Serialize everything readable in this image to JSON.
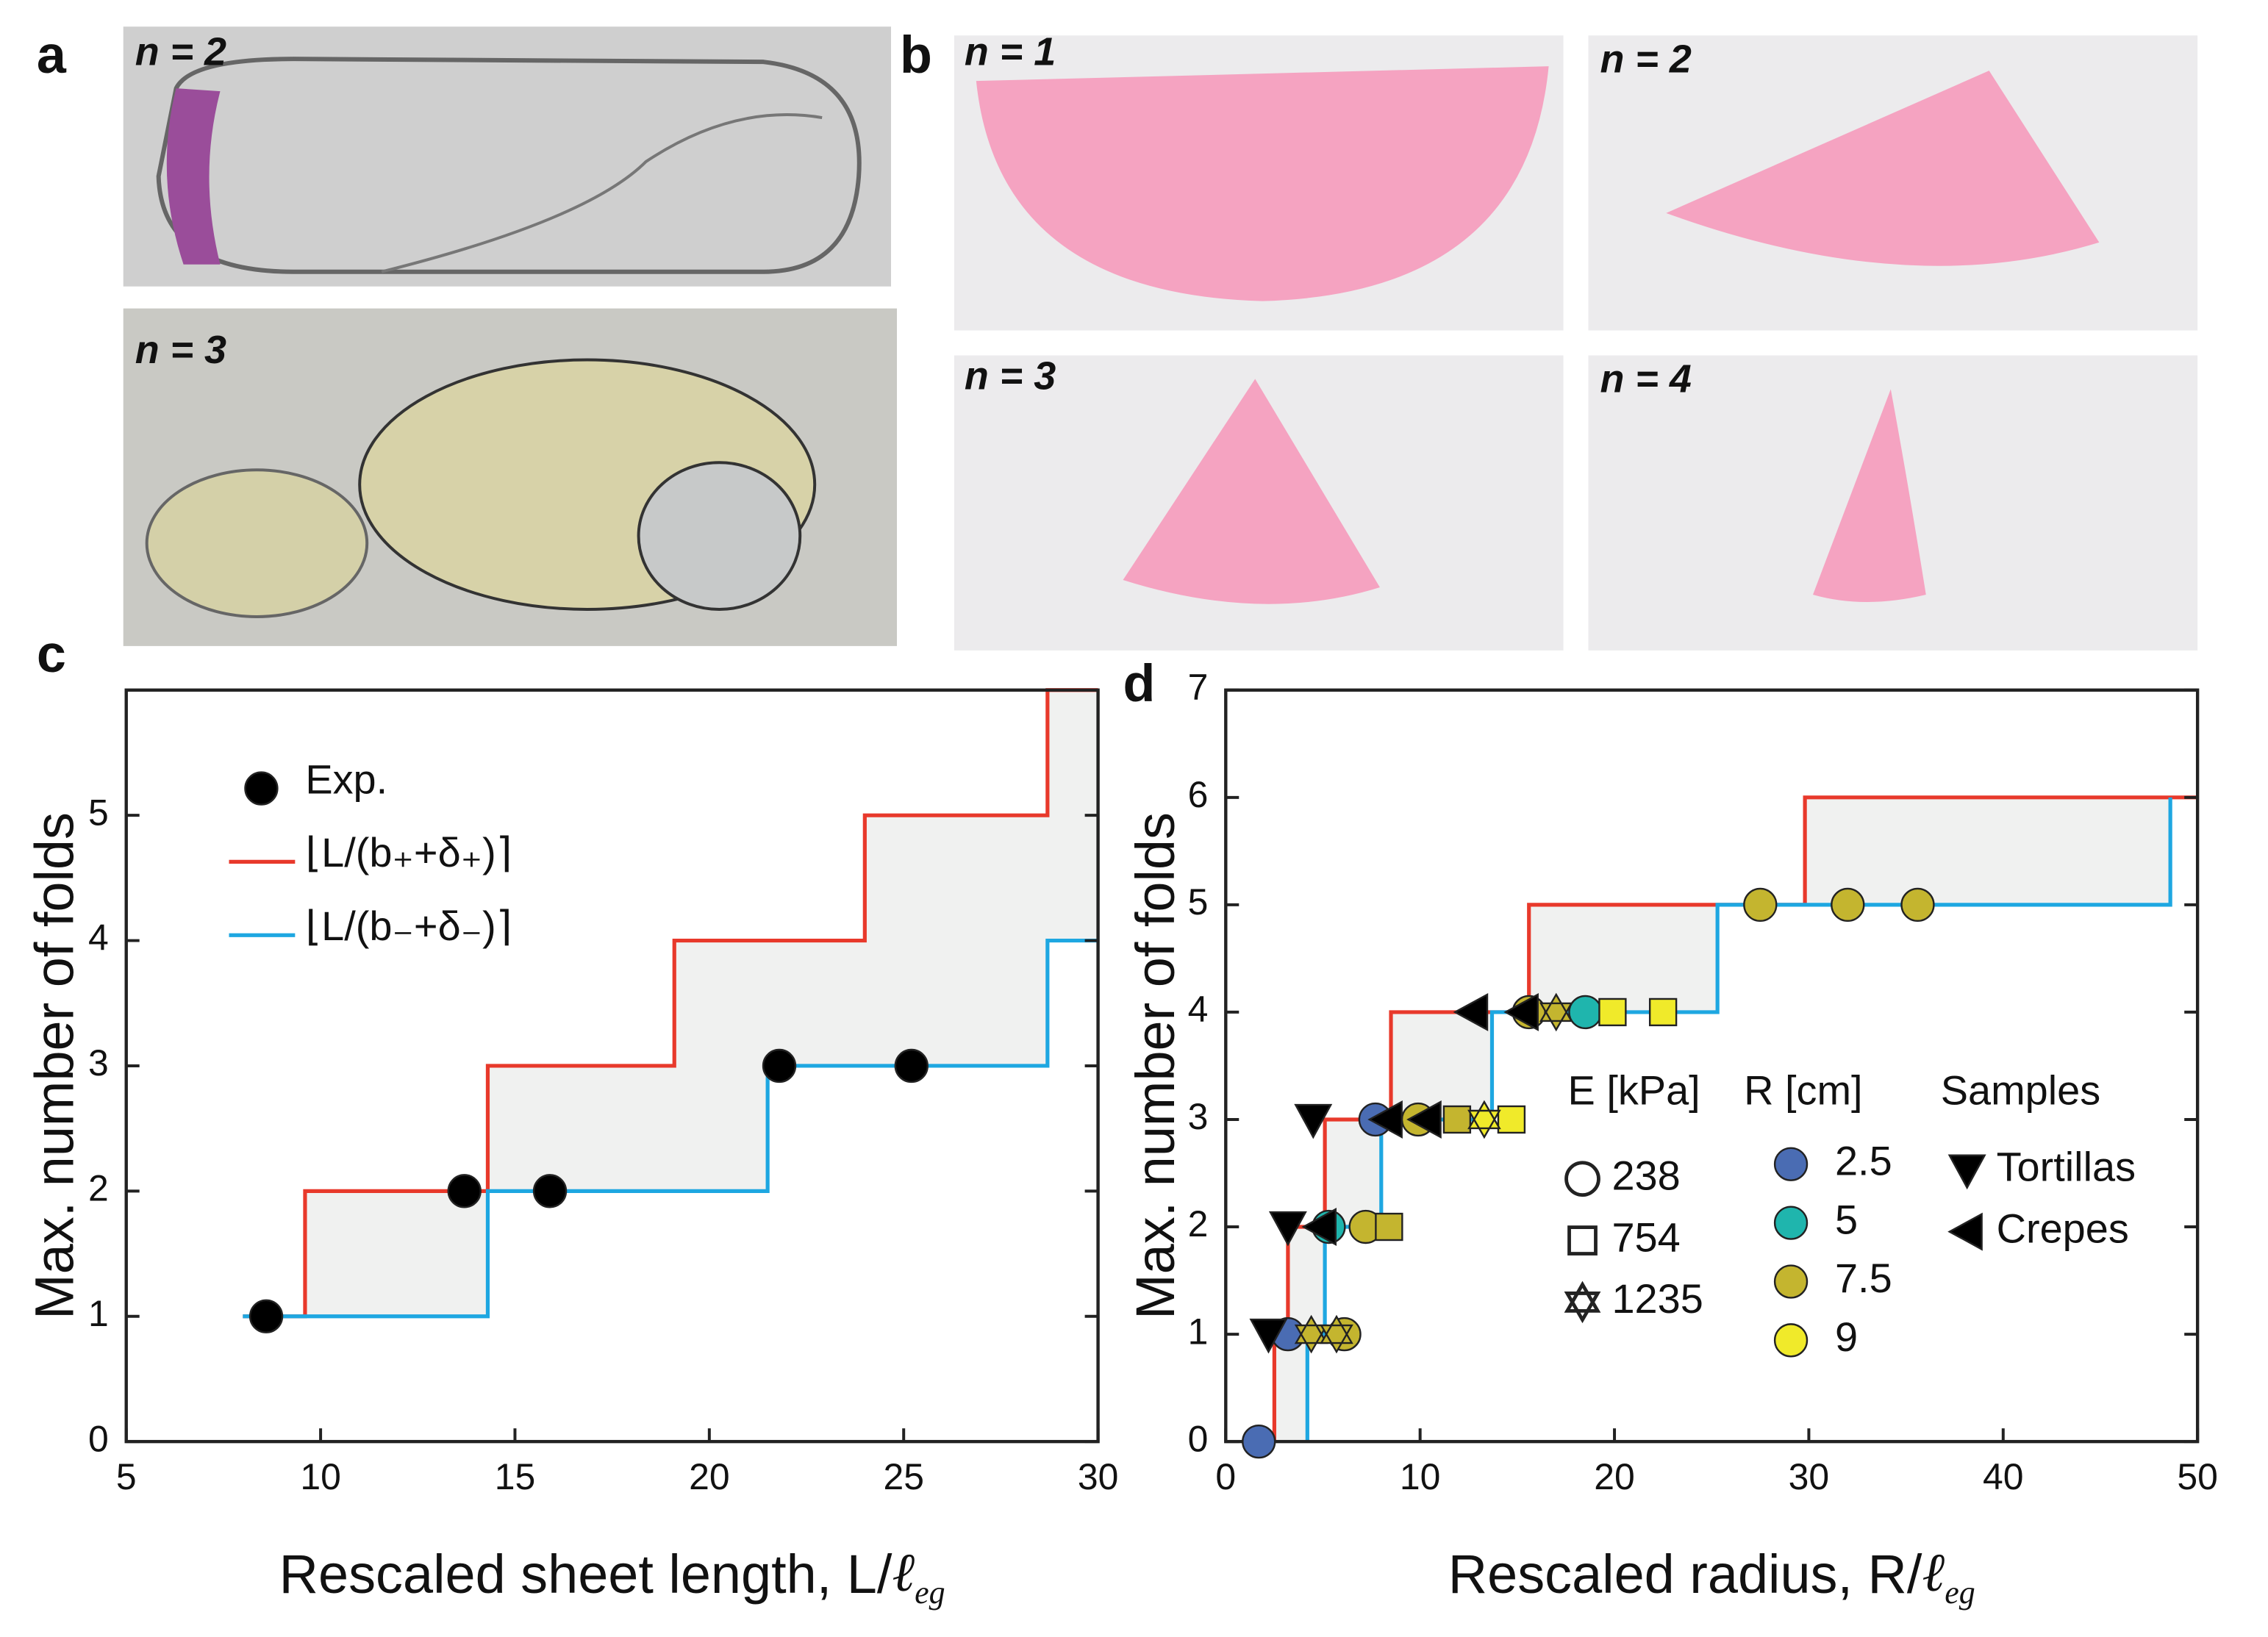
{
  "panel_labels": [
    "a",
    "b",
    "c",
    "d"
  ],
  "photos": {
    "a": [
      "n = 2",
      "n = 3"
    ],
    "b": [
      "n = 1",
      "n = 2",
      "n = 3",
      "n = 4"
    ]
  },
  "chart_data": [
    {
      "type": "step",
      "xlabel": "Rescaled sheet length, L/",
      "xlabel_symbol": "ℓ",
      "xlabel_sub": "eg",
      "ylabel": "Max. number of folds",
      "xlim": [
        5,
        30
      ],
      "xticks": [
        5,
        10,
        15,
        20,
        25,
        30
      ],
      "ylim": [
        0,
        6
      ],
      "yticks": [
        0,
        1,
        2,
        3,
        4,
        5
      ],
      "fill": "#f0f1f0",
      "series": [
        {
          "name": "Exp.",
          "marker": "circle",
          "color": "#000000",
          "x": [
            8.6,
            13.7,
            15.9,
            21.8,
            25.2
          ],
          "values": [
            1,
            2,
            2,
            3,
            3
          ]
        },
        {
          "name": "⌊L/(b₊+δ₊)⌉",
          "color": "#e8392b",
          "x": [
            8,
            9.6,
            9.6,
            14.3,
            14.3,
            19.1,
            19.1,
            24,
            24,
            28.7,
            28.7,
            30
          ],
          "values": [
            1,
            1,
            2,
            2,
            3,
            3,
            4,
            4,
            5,
            5,
            6,
            6
          ]
        },
        {
          "name": "⌊L/(b₋+δ₋)⌉",
          "color": "#1ea7e1",
          "x": [
            8,
            14.3,
            14.3,
            21.5,
            21.5,
            28.7,
            28.7,
            30
          ],
          "values": [
            1,
            1,
            2,
            2,
            3,
            3,
            4,
            4
          ]
        }
      ]
    },
    {
      "type": "step",
      "xlabel": "Rescaled radius, R/",
      "xlabel_symbol": "ℓ",
      "xlabel_sub": "eg",
      "ylabel": "Max. number of folds",
      "xlim": [
        0,
        50
      ],
      "xticks": [
        0,
        10,
        20,
        30,
        40,
        50
      ],
      "ylim": [
        0,
        7
      ],
      "yticks": [
        0,
        1,
        2,
        3,
        4,
        5,
        6,
        7
      ],
      "fill": "#f0f1f0",
      "series": [
        {
          "color": "#e8392b",
          "x": [
            2.5,
            2.5,
            3.2,
            3.2,
            5.1,
            5.1,
            8.5,
            8.5,
            15.6,
            15.6,
            29.8,
            29.8,
            50
          ],
          "values": [
            0,
            1,
            1,
            2,
            2,
            3,
            3,
            4,
            4,
            5,
            5,
            6,
            6
          ]
        },
        {
          "color": "#1ea7e1",
          "x": [
            4.2,
            4.2,
            5.1,
            5.1,
            8.0,
            8.0,
            13.7,
            13.7,
            25.3,
            25.3,
            48.6,
            48.6
          ],
          "values": [
            0,
            1,
            1,
            2,
            2,
            3,
            3,
            4,
            4,
            5,
            5,
            6
          ]
        },
        {
          "marker": "circle",
          "color": "#4a6cb3",
          "x": [
            1.7,
            3.2,
            7.7
          ],
          "values": [
            0,
            1,
            3
          ]
        },
        {
          "marker": "circle",
          "color": "#1fb5ad",
          "x": [
            5.3,
            18.5
          ],
          "values": [
            2,
            4
          ]
        },
        {
          "marker": "circle",
          "color": "#c4b52f",
          "x": [
            6.1,
            7.2,
            9.9,
            15.6,
            27.5,
            32,
            35.6
          ],
          "values": [
            1,
            2,
            3,
            4,
            5,
            5,
            5
          ]
        },
        {
          "marker": "square",
          "color": "#c4b52f",
          "x": [
            8.4,
            11.9
          ],
          "values": [
            2,
            3
          ]
        },
        {
          "marker": "square",
          "color": "#f0ea2a",
          "x": [
            14.7,
            19.9,
            22.5
          ],
          "values": [
            3,
            4,
            4
          ]
        },
        {
          "marker": "star",
          "color": "#c4b52f",
          "x": [
            4.4,
            5.7,
            17.0
          ],
          "values": [
            1,
            1,
            4
          ]
        },
        {
          "marker": "star",
          "color": "#f0ea2a",
          "x": [
            13.3
          ],
          "values": [
            3
          ]
        },
        {
          "marker": "triangle-down",
          "color": "#000000",
          "x": [
            2.2,
            3.2,
            4.5
          ],
          "values": [
            1,
            2,
            3
          ]
        },
        {
          "marker": "triangle-left",
          "color": "#000000",
          "x": [
            4.9,
            8.3,
            10.3,
            12.7,
            15.3
          ],
          "values": [
            2,
            3,
            3,
            4,
            4
          ]
        }
      ],
      "legend_groups": [
        {
          "title": "E [kPa]",
          "items": [
            {
              "label": "238",
              "marker": "circle"
            },
            {
              "label": "754",
              "marker": "square"
            },
            {
              "label": "1235",
              "marker": "star"
            }
          ]
        },
        {
          "title": "R [cm]",
          "items": [
            {
              "label": "2.5",
              "color": "#4a6cb3"
            },
            {
              "label": "5",
              "color": "#1fb5ad"
            },
            {
              "label": "7.5",
              "color": "#c4b52f"
            },
            {
              "label": "9",
              "color": "#f0ea2a"
            }
          ]
        },
        {
          "title": "Samples",
          "items": [
            {
              "label": "Tortillas",
              "marker": "triangle-down"
            },
            {
              "label": "Crepes",
              "marker": "triangle-left"
            }
          ]
        }
      ]
    }
  ]
}
